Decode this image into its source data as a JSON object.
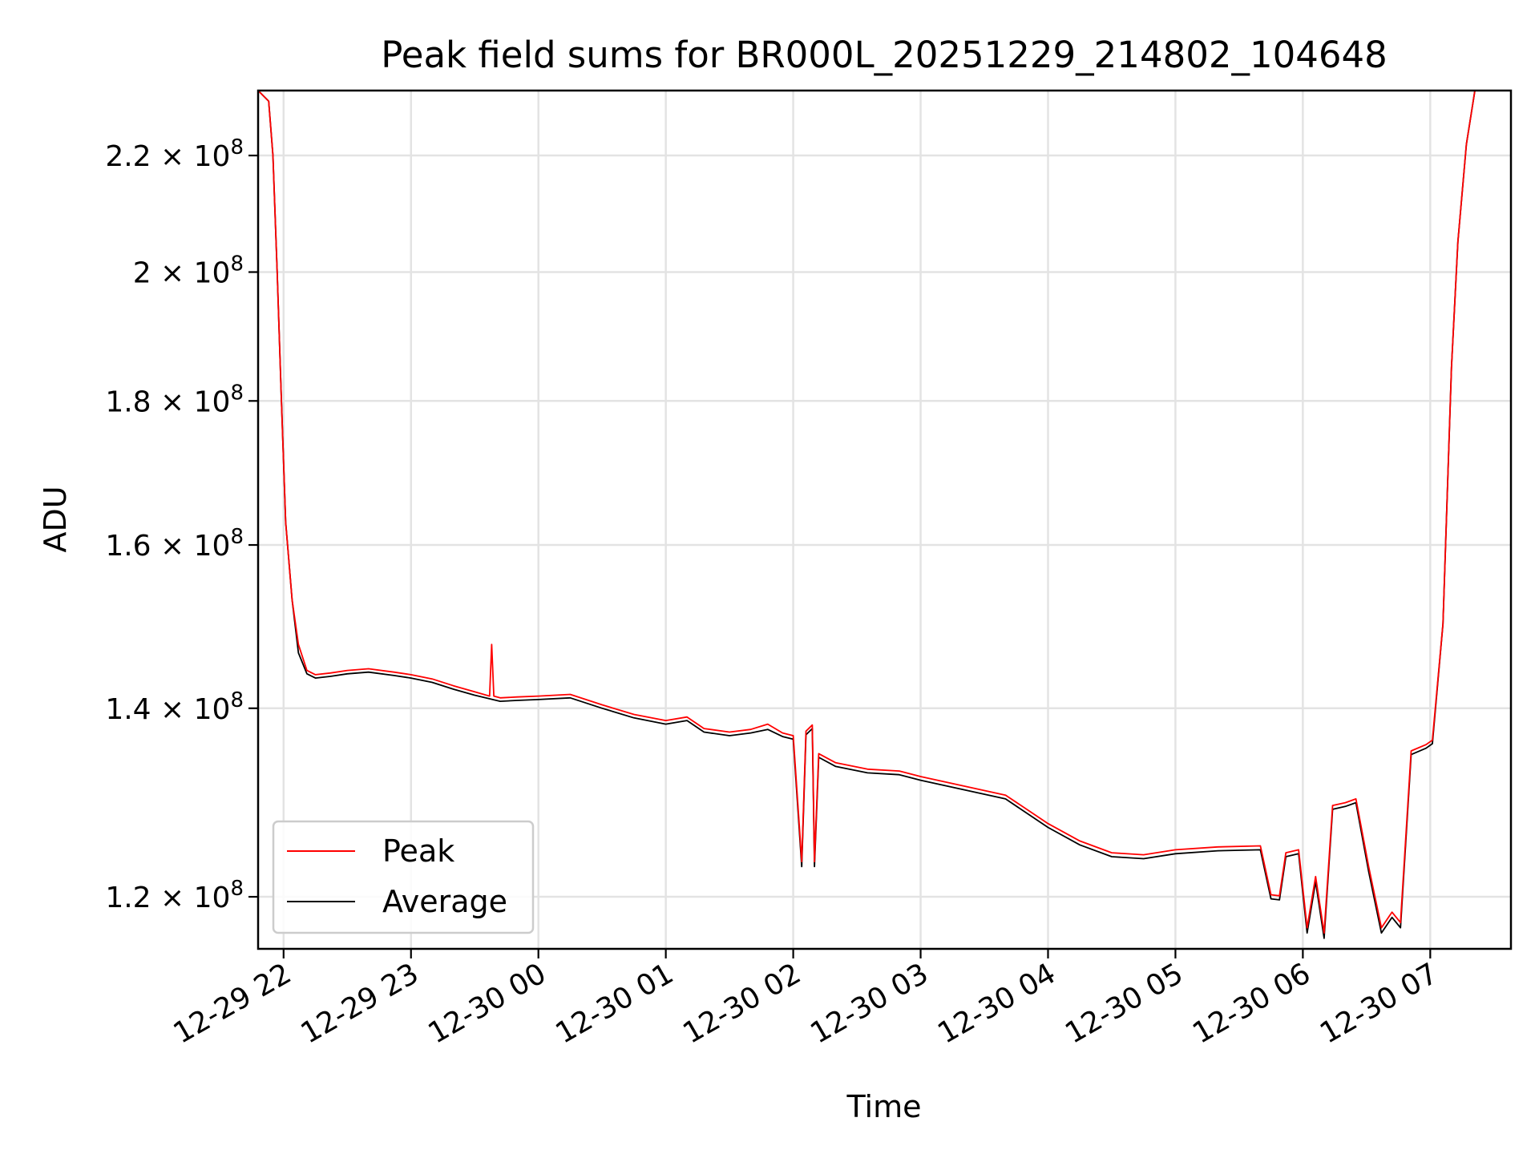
{
  "chart_data": {
    "type": "line",
    "title": "Peak field sums for BR000L_20251229_214802_104648",
    "xlabel": "Time",
    "ylabel": "ADU",
    "y_scale": "log",
    "grid": true,
    "legend_position": "lower-left",
    "x_ticks": [
      "2025-12-29T22:00",
      "2025-12-29T23:00",
      "2025-12-30T00:00",
      "2025-12-30T01:00",
      "2025-12-30T02:00",
      "2025-12-30T03:00",
      "2025-12-30T04:00",
      "2025-12-30T05:00",
      "2025-12-30T06:00",
      "2025-12-30T07:00"
    ],
    "x_tick_labels": [
      "12-29 22",
      "12-29 23",
      "12-30 00",
      "12-30 01",
      "12-30 02",
      "12-30 03",
      "12-30 04",
      "12-30 05",
      "12-30 06",
      "12-30 07"
    ],
    "xlim": [
      "2025-12-29T21:48",
      "2025-12-30T07:38"
    ],
    "y_ticks": [
      120000000,
      140000000,
      160000000,
      180000000,
      200000000,
      220000000
    ],
    "y_tick_labels": [
      {
        "mantissa": "1.2",
        "exp": "8"
      },
      {
        "mantissa": "1.4",
        "exp": "8"
      },
      {
        "mantissa": "1.6",
        "exp": "8"
      },
      {
        "mantissa": "1.8",
        "exp": "8"
      },
      {
        "mantissa": "2",
        "exp": "8"
      },
      {
        "mantissa": "2.2",
        "exp": "8"
      }
    ],
    "ylim": [
      115000000,
      232000000
    ],
    "series": [
      {
        "name": "Average",
        "color": "#000000",
        "points": [
          [
            "2025-12-29T21:48",
            232000000
          ],
          [
            "2025-12-29T21:53",
            230000000
          ],
          [
            "2025-12-29T21:55",
            220000000
          ],
          [
            "2025-12-29T21:57",
            200000000
          ],
          [
            "2025-12-29T21:59",
            180000000
          ],
          [
            "2025-12-29T22:01",
            163000000
          ],
          [
            "2025-12-29T22:04",
            153000000
          ],
          [
            "2025-12-29T22:07",
            146500000
          ],
          [
            "2025-12-29T22:11",
            144000000
          ],
          [
            "2025-12-29T22:15",
            143500000
          ],
          [
            "2025-12-29T22:22",
            143700000
          ],
          [
            "2025-12-29T22:30",
            144000000
          ],
          [
            "2025-12-29T22:40",
            144200000
          ],
          [
            "2025-12-29T22:52",
            143800000
          ],
          [
            "2025-12-29T23:00",
            143500000
          ],
          [
            "2025-12-29T23:10",
            143000000
          ],
          [
            "2025-12-29T23:20",
            142200000
          ],
          [
            "2025-12-29T23:30",
            141500000
          ],
          [
            "2025-12-29T23:42",
            140800000
          ],
          [
            "2025-12-29T23:50",
            140900000
          ],
          [
            "2025-12-30T00:00",
            141000000
          ],
          [
            "2025-12-30T00:15",
            141200000
          ],
          [
            "2025-12-30T00:30",
            140000000
          ],
          [
            "2025-12-30T00:45",
            138900000
          ],
          [
            "2025-12-30T01:00",
            138200000
          ],
          [
            "2025-12-30T01:10",
            138600000
          ],
          [
            "2025-12-30T01:18",
            137300000
          ],
          [
            "2025-12-30T01:30",
            136900000
          ],
          [
            "2025-12-30T01:40",
            137200000
          ],
          [
            "2025-12-30T01:48",
            137600000
          ],
          [
            "2025-12-30T01:55",
            136800000
          ],
          [
            "2025-12-30T02:00",
            136500000
          ],
          [
            "2025-12-30T02:04",
            123000000
          ],
          [
            "2025-12-30T02:06",
            137000000
          ],
          [
            "2025-12-30T02:09",
            137700000
          ],
          [
            "2025-12-30T02:10",
            123000000
          ],
          [
            "2025-12-30T02:12",
            134500000
          ],
          [
            "2025-12-30T02:20",
            133500000
          ],
          [
            "2025-12-30T02:35",
            132800000
          ],
          [
            "2025-12-30T02:50",
            132600000
          ],
          [
            "2025-12-30T03:00",
            132000000
          ],
          [
            "2025-12-30T03:20",
            131000000
          ],
          [
            "2025-12-30T03:40",
            130000000
          ],
          [
            "2025-12-30T04:00",
            127000000
          ],
          [
            "2025-12-30T04:15",
            125200000
          ],
          [
            "2025-12-30T04:30",
            124000000
          ],
          [
            "2025-12-30T04:45",
            123800000
          ],
          [
            "2025-12-30T05:00",
            124300000
          ],
          [
            "2025-12-30T05:20",
            124600000
          ],
          [
            "2025-12-30T05:40",
            124700000
          ],
          [
            "2025-12-30T05:45",
            119800000
          ],
          [
            "2025-12-30T05:49",
            119700000
          ],
          [
            "2025-12-30T05:52",
            124000000
          ],
          [
            "2025-12-30T05:58",
            124300000
          ],
          [
            "2025-12-30T06:02",
            116500000
          ],
          [
            "2025-12-30T06:06",
            121500000
          ],
          [
            "2025-12-30T06:10",
            116000000
          ],
          [
            "2025-12-30T06:14",
            128900000
          ],
          [
            "2025-12-30T06:20",
            129200000
          ],
          [
            "2025-12-30T06:25",
            129600000
          ],
          [
            "2025-12-30T06:31",
            122500000
          ],
          [
            "2025-12-30T06:37",
            116500000
          ],
          [
            "2025-12-30T06:42",
            118000000
          ],
          [
            "2025-12-30T06:46",
            117000000
          ],
          [
            "2025-12-30T06:51",
            134800000
          ],
          [
            "2025-12-30T06:58",
            135500000
          ],
          [
            "2025-12-30T07:01",
            136000000
          ],
          [
            "2025-12-30T07:06",
            150000000
          ],
          [
            "2025-12-30T07:10",
            185000000
          ],
          [
            "2025-12-30T07:13",
            205000000
          ],
          [
            "2025-12-30T07:17",
            222000000
          ],
          [
            "2025-12-30T07:21",
            232000000
          ],
          [
            "2025-12-30T07:38",
            232000000
          ]
        ]
      },
      {
        "name": "Peak",
        "color": "#ff0000",
        "points": [
          [
            "2025-12-29T21:48",
            232000000
          ],
          [
            "2025-12-29T21:53",
            230000000
          ],
          [
            "2025-12-29T21:55",
            220000000
          ],
          [
            "2025-12-29T21:57",
            200000000
          ],
          [
            "2025-12-29T21:59",
            180000000
          ],
          [
            "2025-12-29T22:01",
            163000000
          ],
          [
            "2025-12-29T22:04",
            153000000
          ],
          [
            "2025-12-29T22:07",
            147500000
          ],
          [
            "2025-12-29T22:11",
            144400000
          ],
          [
            "2025-12-29T22:15",
            143900000
          ],
          [
            "2025-12-29T22:22",
            144100000
          ],
          [
            "2025-12-29T22:30",
            144400000
          ],
          [
            "2025-12-29T22:40",
            144600000
          ],
          [
            "2025-12-29T22:52",
            144200000
          ],
          [
            "2025-12-29T23:00",
            143900000
          ],
          [
            "2025-12-29T23:10",
            143400000
          ],
          [
            "2025-12-29T23:20",
            142600000
          ],
          [
            "2025-12-29T23:30",
            141900000
          ],
          [
            "2025-12-29T23:37",
            141400000
          ],
          [
            "2025-12-29T23:38",
            147500000
          ],
          [
            "2025-12-29T23:39",
            141400000
          ],
          [
            "2025-12-29T23:42",
            141200000
          ],
          [
            "2025-12-29T23:50",
            141300000
          ],
          [
            "2025-12-30T00:00",
            141400000
          ],
          [
            "2025-12-30T00:15",
            141600000
          ],
          [
            "2025-12-30T00:30",
            140400000
          ],
          [
            "2025-12-30T00:45",
            139300000
          ],
          [
            "2025-12-30T01:00",
            138600000
          ],
          [
            "2025-12-30T01:10",
            139000000
          ],
          [
            "2025-12-30T01:18",
            137700000
          ],
          [
            "2025-12-30T01:30",
            137300000
          ],
          [
            "2025-12-30T01:40",
            137600000
          ],
          [
            "2025-12-30T01:48",
            138200000
          ],
          [
            "2025-12-30T01:55",
            137200000
          ],
          [
            "2025-12-30T02:00",
            136900000
          ],
          [
            "2025-12-30T02:04",
            123500000
          ],
          [
            "2025-12-30T02:06",
            137400000
          ],
          [
            "2025-12-30T02:09",
            138100000
          ],
          [
            "2025-12-30T02:10",
            123500000
          ],
          [
            "2025-12-30T02:12",
            134900000
          ],
          [
            "2025-12-30T02:20",
            133900000
          ],
          [
            "2025-12-30T02:35",
            133200000
          ],
          [
            "2025-12-30T02:50",
            133000000
          ],
          [
            "2025-12-30T03:00",
            132400000
          ],
          [
            "2025-12-30T03:20",
            131400000
          ],
          [
            "2025-12-30T03:40",
            130400000
          ],
          [
            "2025-12-30T04:00",
            127400000
          ],
          [
            "2025-12-30T04:15",
            125600000
          ],
          [
            "2025-12-30T04:30",
            124400000
          ],
          [
            "2025-12-30T04:45",
            124200000
          ],
          [
            "2025-12-30T05:00",
            124700000
          ],
          [
            "2025-12-30T05:20",
            125000000
          ],
          [
            "2025-12-30T05:40",
            125100000
          ],
          [
            "2025-12-30T05:45",
            120200000
          ],
          [
            "2025-12-30T05:49",
            120100000
          ],
          [
            "2025-12-30T05:52",
            124400000
          ],
          [
            "2025-12-30T05:58",
            124700000
          ],
          [
            "2025-12-30T06:02",
            117000000
          ],
          [
            "2025-12-30T06:06",
            122000000
          ],
          [
            "2025-12-30T06:10",
            116500000
          ],
          [
            "2025-12-30T06:14",
            129300000
          ],
          [
            "2025-12-30T06:20",
            129600000
          ],
          [
            "2025-12-30T06:25",
            130000000
          ],
          [
            "2025-12-30T06:31",
            123000000
          ],
          [
            "2025-12-30T06:37",
            117000000
          ],
          [
            "2025-12-30T06:42",
            118500000
          ],
          [
            "2025-12-30T06:46",
            117500000
          ],
          [
            "2025-12-30T06:51",
            135200000
          ],
          [
            "2025-12-30T06:58",
            135900000
          ],
          [
            "2025-12-30T07:01",
            136400000
          ],
          [
            "2025-12-30T07:06",
            150000000
          ],
          [
            "2025-12-30T07:10",
            185000000
          ],
          [
            "2025-12-30T07:13",
            205000000
          ],
          [
            "2025-12-30T07:17",
            222000000
          ],
          [
            "2025-12-30T07:21",
            232000000
          ],
          [
            "2025-12-30T07:38",
            232000000
          ]
        ]
      }
    ],
    "legend": [
      {
        "label": "Peak",
        "color": "#ff0000"
      },
      {
        "label": "Average",
        "color": "#000000"
      }
    ]
  }
}
